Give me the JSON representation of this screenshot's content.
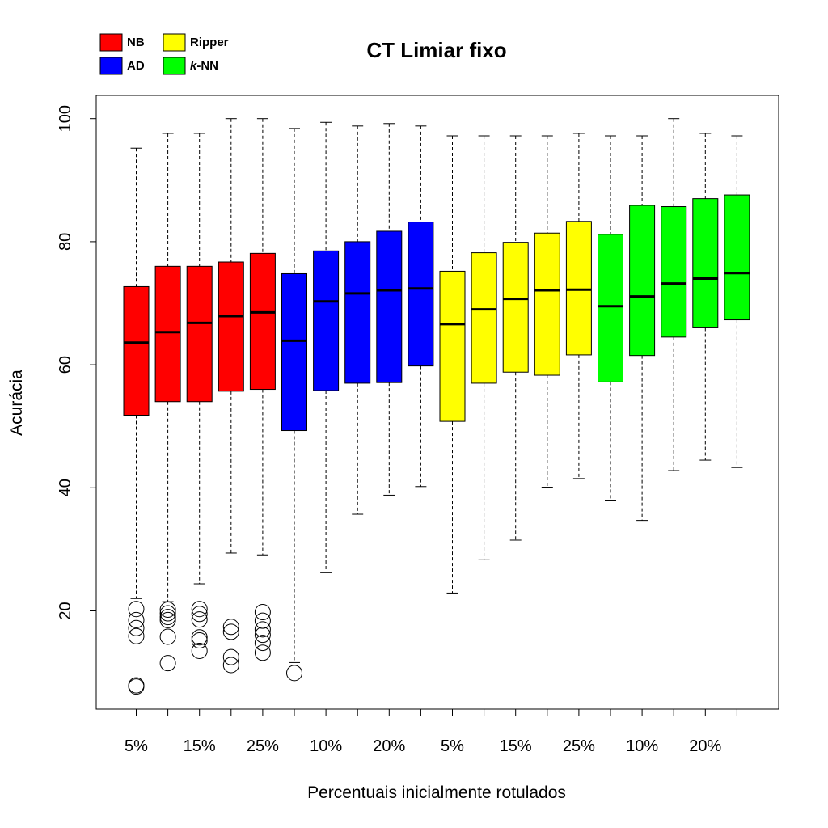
{
  "chart_data": {
    "type": "boxplot",
    "title": "CT Limiar fixo",
    "xlabel": "Percentuais inicialmente rotulados",
    "ylabel": "Acurácia",
    "ylim": [
      5,
      103
    ],
    "yticks": [
      20,
      40,
      60,
      80,
      100
    ],
    "grid": false,
    "legend": {
      "placement": "top-left",
      "entries": [
        {
          "label": "NB",
          "color": "#ff0000"
        },
        {
          "label": "Ripper",
          "color": "#ffff00"
        },
        {
          "label": "AD",
          "color": "#0000ff"
        },
        {
          "label": "k-NN",
          "label_prefix": "k",
          "label_suffix": "-NN",
          "color": "#00ff00"
        }
      ]
    },
    "xtick_labels": [
      "5%",
      "15%",
      "25%",
      "10%",
      "20%",
      "5%",
      "15%",
      "25%",
      "10%",
      "20%"
    ],
    "series": [
      {
        "name": "NB",
        "color": "#ff0000",
        "boxes": [
          {
            "label": "5%",
            "min": 22.0,
            "q1": 51.8,
            "median": 63.6,
            "q3": 72.7,
            "max": 95.2,
            "outliers": [
              20.3,
              18.5,
              17.2,
              15.9,
              7.9,
              7.7
            ]
          },
          {
            "label": "10%",
            "min": 21.5,
            "q1": 54.0,
            "median": 65.3,
            "q3": 76.0,
            "max": 97.6,
            "outliers": [
              20.2,
              19.6,
              19.0,
              18.5,
              15.8,
              11.5
            ]
          },
          {
            "label": "15%",
            "min": 24.4,
            "q1": 54.0,
            "median": 66.8,
            "q3": 76.0,
            "max": 97.6,
            "outliers": [
              20.3,
              19.5,
              18.6,
              15.7,
              15.2,
              13.5
            ]
          },
          {
            "label": "20%",
            "min": 29.4,
            "q1": 55.7,
            "median": 67.9,
            "q3": 76.7,
            "max": 100.0,
            "outliers": [
              17.4,
              16.6,
              12.5,
              11.2
            ]
          },
          {
            "label": "25%",
            "min": 29.1,
            "q1": 56.0,
            "median": 68.5,
            "q3": 78.1,
            "max": 100.0,
            "outliers": [
              19.8,
              18.4,
              17.0,
              16.1,
              14.8,
              13.2
            ]
          }
        ]
      },
      {
        "name": "AD",
        "color": "#0000ff",
        "boxes": [
          {
            "label": "5%",
            "min": 11.6,
            "q1": 49.3,
            "median": 63.9,
            "q3": 74.8,
            "max": 98.4,
            "outliers": [
              9.9
            ]
          },
          {
            "label": "10%",
            "min": 26.2,
            "q1": 55.8,
            "median": 70.3,
            "q3": 78.5,
            "max": 99.4,
            "outliers": []
          },
          {
            "label": "15%",
            "min": 35.7,
            "q1": 57.0,
            "median": 71.6,
            "q3": 80.0,
            "max": 98.8,
            "outliers": []
          },
          {
            "label": "20%",
            "min": 38.8,
            "q1": 57.1,
            "median": 72.1,
            "q3": 81.7,
            "max": 99.2,
            "outliers": []
          },
          {
            "label": "25%",
            "min": 40.2,
            "q1": 59.8,
            "median": 72.4,
            "q3": 83.2,
            "max": 98.8,
            "outliers": []
          }
        ]
      },
      {
        "name": "Ripper",
        "color": "#ffff00",
        "boxes": [
          {
            "label": "5%",
            "min": 22.9,
            "q1": 50.8,
            "median": 66.6,
            "q3": 75.2,
            "max": 97.2,
            "outliers": []
          },
          {
            "label": "10%",
            "min": 28.3,
            "q1": 57.0,
            "median": 69.0,
            "q3": 78.2,
            "max": 97.2,
            "outliers": []
          },
          {
            "label": "15%",
            "min": 31.5,
            "q1": 58.8,
            "median": 70.7,
            "q3": 79.9,
            "max": 97.2,
            "outliers": []
          },
          {
            "label": "20%",
            "min": 40.1,
            "q1": 58.3,
            "median": 72.1,
            "q3": 81.4,
            "max": 97.2,
            "outliers": []
          },
          {
            "label": "25%",
            "min": 41.5,
            "q1": 61.6,
            "median": 72.2,
            "q3": 83.3,
            "max": 97.6,
            "outliers": []
          }
        ]
      },
      {
        "name": "k-NN",
        "color": "#00ff00",
        "boxes": [
          {
            "label": "5%",
            "min": 38.0,
            "q1": 57.2,
            "median": 69.5,
            "q3": 81.2,
            "max": 97.2,
            "outliers": []
          },
          {
            "label": "10%",
            "min": 34.7,
            "q1": 61.5,
            "median": 71.1,
            "q3": 85.9,
            "max": 97.2,
            "outliers": []
          },
          {
            "label": "15%",
            "min": 42.8,
            "q1": 64.5,
            "median": 73.2,
            "q3": 85.7,
            "max": 100.0,
            "outliers": []
          },
          {
            "label": "20%",
            "min": 44.5,
            "q1": 66.0,
            "median": 74.0,
            "q3": 87.0,
            "max": 97.6,
            "outliers": []
          },
          {
            "label": "25%",
            "min": 43.3,
            "q1": 67.3,
            "median": 74.9,
            "q3": 87.6,
            "max": 97.2,
            "outliers": []
          }
        ]
      }
    ]
  }
}
